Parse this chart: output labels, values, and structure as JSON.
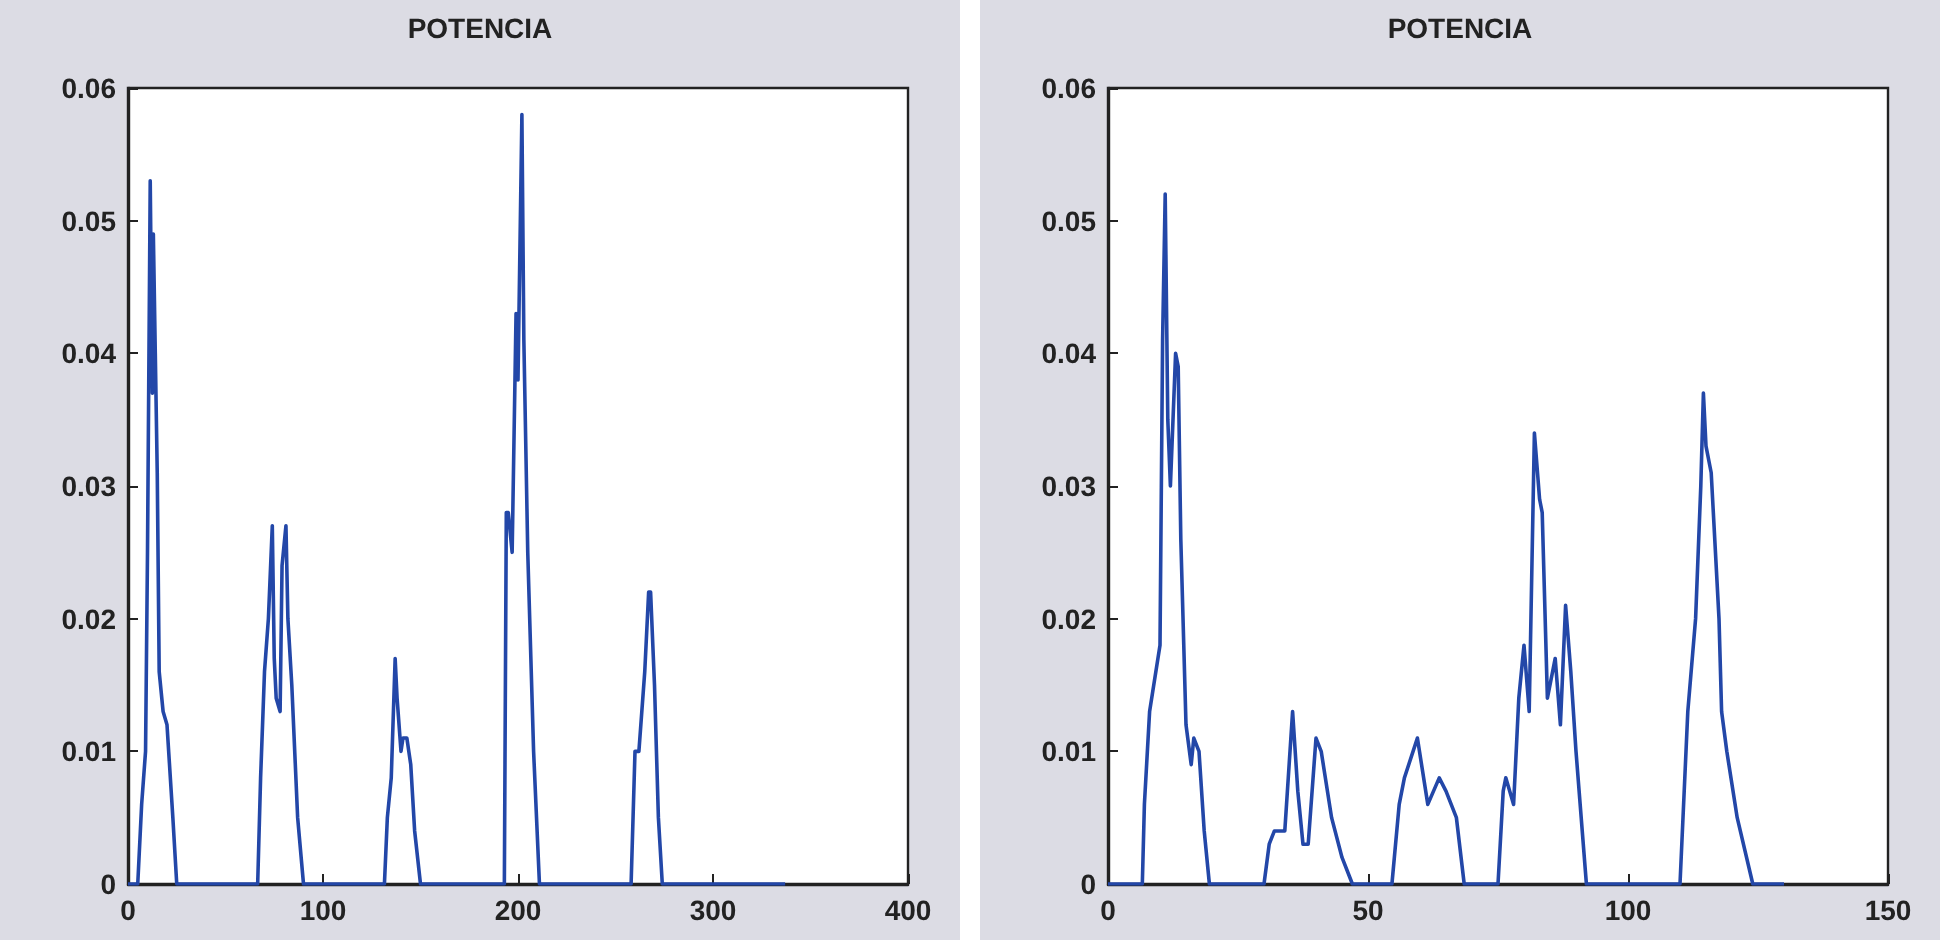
{
  "chart_data": [
    {
      "type": "line",
      "title": "POTENCIA",
      "color": "#2347a8",
      "marker": "none",
      "grid": false,
      "xlim": [
        0,
        400
      ],
      "xticks": [
        0,
        100,
        200,
        300,
        400
      ],
      "ylim": [
        0,
        0.06
      ],
      "yticks": [
        0,
        0.01,
        0.02,
        0.03,
        0.04,
        0.05,
        0.06
      ],
      "x": [
        0,
        5,
        7,
        9,
        10,
        11.4,
        12.5,
        13,
        14,
        15,
        16,
        18,
        20,
        23,
        25,
        66.5,
        68,
        70,
        72,
        74,
        75,
        76,
        78,
        79,
        81,
        82,
        84,
        87,
        90,
        131.5,
        133,
        135,
        137,
        138,
        140,
        141,
        143,
        145,
        147,
        150,
        193,
        194,
        195,
        197,
        199,
        200,
        202,
        203,
        205,
        208,
        211,
        258,
        260,
        262,
        265,
        267,
        268,
        270,
        272,
        274,
        337
      ],
      "values": [
        0,
        0,
        0.006,
        0.01,
        0.025,
        0.053,
        0.037,
        0.049,
        0.04,
        0.031,
        0.016,
        0.013,
        0.012,
        0.005,
        0,
        0,
        0.008,
        0.016,
        0.02,
        0.027,
        0.017,
        0.014,
        0.013,
        0.024,
        0.027,
        0.02,
        0.015,
        0.005,
        0,
        0,
        0.005,
        0.008,
        0.017,
        0.014,
        0.01,
        0.011,
        0.011,
        0.009,
        0.004,
        0,
        0,
        0.028,
        0.028,
        0.025,
        0.043,
        0.038,
        0.058,
        0.041,
        0.025,
        0.01,
        0,
        0,
        0.01,
        0.01,
        0.016,
        0.022,
        0.022,
        0.015,
        0.005,
        0,
        0
      ]
    },
    {
      "type": "line",
      "title": "POTENCIA",
      "color": "#2347a8",
      "marker": "none",
      "grid": false,
      "xlim": [
        0,
        150
      ],
      "xticks": [
        0,
        50,
        100,
        150
      ],
      "ylim": [
        0,
        0.06
      ],
      "yticks": [
        0,
        0.01,
        0.02,
        0.03,
        0.04,
        0.05,
        0.06
      ],
      "x": [
        0,
        6.6,
        7,
        8,
        10,
        10.5,
        11,
        11.5,
        12,
        13,
        13.5,
        14,
        15,
        16,
        16.5,
        17.5,
        18.5,
        19.5,
        30,
        31,
        32,
        34,
        35.5,
        36.5,
        37.5,
        38.5,
        40,
        41,
        43,
        45,
        47,
        54.6,
        56,
        57,
        59.5,
        61.5,
        63.7,
        65,
        67,
        68.5,
        75,
        76,
        76.5,
        78,
        79,
        80,
        81,
        82,
        83,
        83.5,
        84.5,
        86,
        87,
        88,
        89,
        90,
        92,
        110,
        111.5,
        113,
        114,
        114.5,
        115,
        116,
        117.5,
        118,
        119,
        121,
        124,
        130
      ],
      "values": [
        0,
        0,
        0.006,
        0.013,
        0.018,
        0.041,
        0.052,
        0.035,
        0.03,
        0.04,
        0.039,
        0.026,
        0.012,
        0.009,
        0.011,
        0.01,
        0.004,
        0,
        0,
        0.003,
        0.004,
        0.004,
        0.013,
        0.007,
        0.003,
        0.003,
        0.011,
        0.01,
        0.005,
        0.002,
        0,
        0,
        0.006,
        0.008,
        0.011,
        0.006,
        0.008,
        0.007,
        0.005,
        0,
        0,
        0.007,
        0.008,
        0.006,
        0.014,
        0.018,
        0.013,
        0.034,
        0.029,
        0.028,
        0.014,
        0.017,
        0.012,
        0.021,
        0.016,
        0.01,
        0,
        0,
        0.013,
        0.02,
        0.03,
        0.037,
        0.033,
        0.031,
        0.02,
        0.013,
        0.01,
        0.005,
        0,
        0
      ]
    }
  ]
}
